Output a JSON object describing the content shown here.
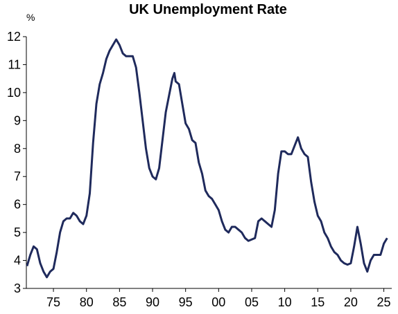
{
  "chart_data": {
    "type": "line",
    "title": "UK Unemployment Rate",
    "y_label": "%",
    "x": [
      1971,
      1971.5,
      1972,
      1972.5,
      1973,
      1973.5,
      1974,
      1974.5,
      1975,
      1975.5,
      1976,
      1976.5,
      1977,
      1977.5,
      1978,
      1978.5,
      1979,
      1979.5,
      1980,
      1980.5,
      1981,
      1981.5,
      1982,
      1982.5,
      1983,
      1983.5,
      1984,
      1984.5,
      1985,
      1985.5,
      1986,
      1986.5,
      1987,
      1987.5,
      1988,
      1988.5,
      1989,
      1989.5,
      1990,
      1990.5,
      1991,
      1991.5,
      1992,
      1992.5,
      1993,
      1993.3,
      1993.5,
      1994,
      1994.5,
      1995,
      1995.5,
      1996,
      1996.5,
      1997,
      1997.5,
      1998,
      1998.5,
      1999,
      1999.5,
      2000,
      2000.5,
      2001,
      2001.5,
      2002,
      2002.5,
      2003,
      2003.5,
      2004,
      2004.5,
      2005,
      2005.5,
      2006,
      2006.5,
      2007,
      2007.5,
      2008,
      2008.5,
      2009,
      2009.5,
      2010,
      2010.5,
      2011,
      2011.5,
      2012,
      2012.5,
      2013,
      2013.5,
      2014,
      2014.5,
      2015,
      2015.5,
      2016,
      2016.5,
      2017,
      2017.5,
      2018,
      2018.5,
      2019,
      2019.5,
      2020,
      2020.5,
      2021,
      2021.5,
      2022,
      2022.5,
      2023,
      2023.5,
      2024,
      2024.5,
      2025,
      2025.5
    ],
    "values": [
      3.8,
      4.2,
      4.5,
      4.4,
      3.9,
      3.6,
      3.4,
      3.6,
      3.7,
      4.3,
      5.0,
      5.4,
      5.5,
      5.5,
      5.7,
      5.6,
      5.4,
      5.3,
      5.6,
      6.4,
      8.2,
      9.6,
      10.3,
      10.7,
      11.2,
      11.5,
      11.7,
      11.9,
      11.7,
      11.4,
      11.3,
      11.3,
      11.3,
      10.9,
      10.0,
      9.0,
      8.0,
      7.3,
      7.0,
      6.9,
      7.3,
      8.3,
      9.3,
      9.9,
      10.5,
      10.7,
      10.4,
      10.3,
      9.6,
      8.9,
      8.7,
      8.3,
      8.2,
      7.5,
      7.1,
      6.5,
      6.3,
      6.2,
      6.0,
      5.8,
      5.4,
      5.1,
      5.0,
      5.2,
      5.2,
      5.1,
      5.0,
      4.8,
      4.7,
      4.75,
      4.8,
      5.4,
      5.5,
      5.4,
      5.3,
      5.2,
      5.8,
      7.1,
      7.9,
      7.9,
      7.8,
      7.8,
      8.1,
      8.4,
      8.0,
      7.8,
      7.7,
      6.8,
      6.1,
      5.6,
      5.4,
      5.0,
      4.8,
      4.5,
      4.3,
      4.2,
      4.0,
      3.9,
      3.85,
      3.9,
      4.5,
      5.2,
      4.6,
      3.9,
      3.6,
      4.0,
      4.2,
      4.2,
      4.2,
      4.6,
      4.8
    ],
    "color": "#1f2a5c",
    "xlim": [
      1970.9,
      2026.2
    ],
    "xticks": [
      {
        "value": 1975,
        "label": "75"
      },
      {
        "value": 1980,
        "label": "80"
      },
      {
        "value": 1985,
        "label": "85"
      },
      {
        "value": 1990,
        "label": "90"
      },
      {
        "value": 1995,
        "label": "95"
      },
      {
        "value": 2000,
        "label": "00"
      },
      {
        "value": 2005,
        "label": "05"
      },
      {
        "value": 2010,
        "label": "10"
      },
      {
        "value": 2015,
        "label": "15"
      },
      {
        "value": 2020,
        "label": "20"
      },
      {
        "value": 2025,
        "label": "25"
      }
    ],
    "ylim": [
      3,
      12
    ],
    "yticks": [
      3,
      4,
      5,
      6,
      7,
      8,
      9,
      10,
      11,
      12
    ]
  }
}
